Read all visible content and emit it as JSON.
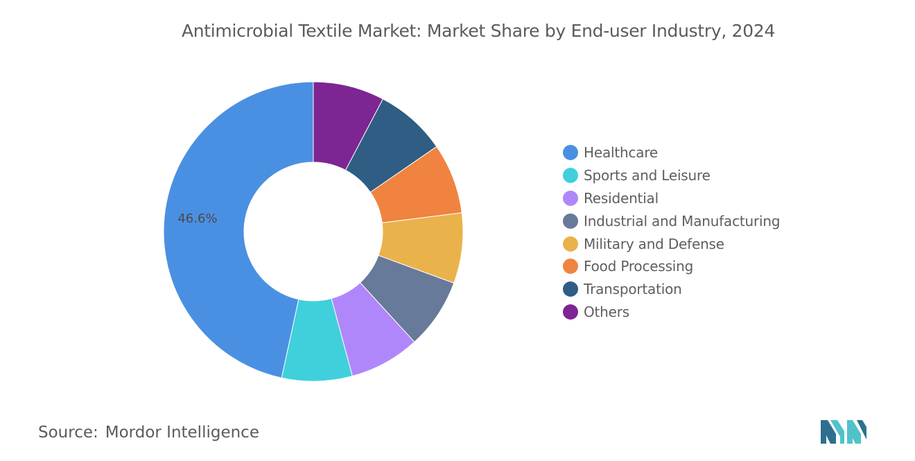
{
  "chart_data": {
    "type": "pie",
    "title": "Antimicrobial Textile Market: Market Share by End-user Industry, 2024",
    "donut": true,
    "categories": [
      "Healthcare",
      "Sports and Leisure",
      "Residential",
      "Industrial and Manufacturing",
      "Military and Defense",
      "Food Processing",
      "Transportation",
      "Others"
    ],
    "values": [
      46.6,
      7.6,
      7.6,
      7.6,
      7.6,
      7.6,
      7.7,
      7.7
    ],
    "colors": [
      "#4a90e2",
      "#3fd0dc",
      "#b087fb",
      "#687a99",
      "#eab24b",
      "#f08340",
      "#2f5d84",
      "#7d2592"
    ],
    "data_labels": {
      "Healthcare": "46.6%"
    },
    "legend_position": "right"
  },
  "source": {
    "label": "Source:",
    "value": "Mordor Intelligence"
  },
  "logo": {
    "icon": "mordor-intelligence-logo",
    "colors": [
      "#2e6f8f",
      "#4fc3c9"
    ]
  }
}
